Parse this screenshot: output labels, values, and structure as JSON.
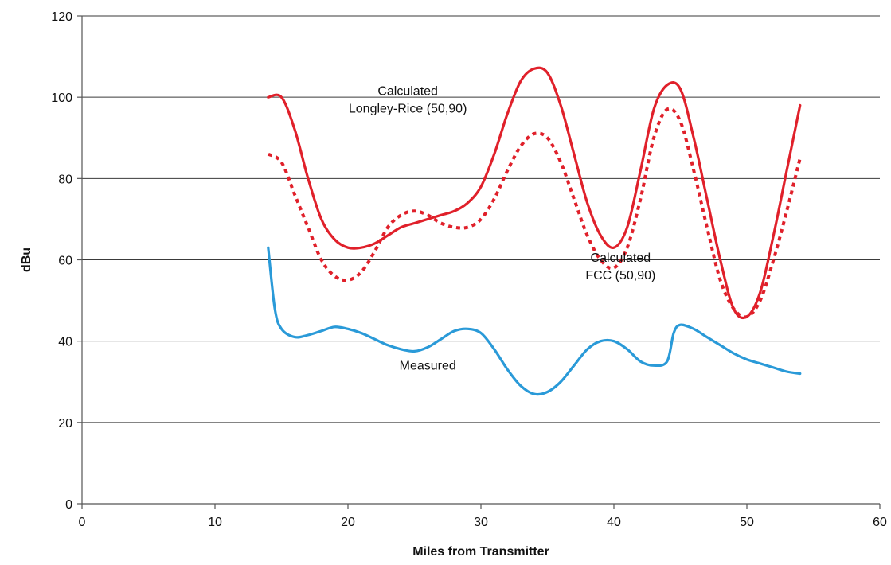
{
  "chart_data": {
    "type": "line",
    "title": "",
    "xlabel": "Miles from Transmitter",
    "ylabel": "dBu",
    "xlim": [
      0,
      60
    ],
    "ylim": [
      0,
      120
    ],
    "x_ticks": [
      0,
      10,
      20,
      30,
      40,
      50,
      60
    ],
    "y_ticks": [
      0,
      20,
      40,
      60,
      80,
      100,
      120
    ],
    "grid": "horizontal",
    "legend": "none",
    "series": [
      {
        "color": "#e0202a",
        "style": "solid",
        "x": [
          14,
          15,
          16,
          17,
          18,
          19,
          20,
          21,
          22,
          23,
          24,
          25,
          26,
          27,
          28,
          29,
          30,
          31,
          32,
          33,
          34,
          35,
          36,
          37,
          38,
          39,
          40,
          41,
          42,
          43,
          44,
          45,
          46,
          47,
          48,
          49,
          50,
          51,
          52,
          53,
          54
        ],
        "y": [
          100,
          100,
          92,
          80,
          70,
          65,
          63,
          63,
          64,
          66,
          68,
          69,
          70,
          71,
          72,
          74,
          78,
          86,
          96,
          104,
          107,
          106,
          98,
          86,
          74,
          66,
          63,
          68,
          82,
          97,
          103,
          102,
          90,
          75,
          60,
          48,
          46,
          52,
          66,
          82,
          98
        ]
      },
      {
        "color": "#e0202a",
        "style": "dotted",
        "x": [
          14,
          15,
          16,
          17,
          18,
          19,
          20,
          21,
          22,
          23,
          24,
          25,
          26,
          27,
          28,
          29,
          30,
          31,
          32,
          33,
          34,
          35,
          36,
          37,
          38,
          39,
          40,
          41,
          42,
          43,
          44,
          45,
          46,
          47,
          48,
          49,
          50,
          51,
          52,
          53,
          54
        ],
        "y": [
          86,
          84,
          76,
          68,
          60,
          56,
          55,
          57,
          62,
          68,
          71,
          72,
          71,
          69,
          68,
          68,
          70,
          75,
          82,
          88,
          91,
          90,
          84,
          75,
          66,
          60,
          58,
          63,
          75,
          90,
          97,
          94,
          82,
          68,
          55,
          48,
          46,
          50,
          60,
          72,
          85
        ]
      },
      {
        "color": "#2a9ad8",
        "style": "solid",
        "x": [
          14,
          14.5,
          15,
          16,
          17,
          18,
          19,
          20,
          21,
          22,
          23,
          24,
          25,
          26,
          27,
          28,
          29,
          30,
          31,
          32,
          33,
          34,
          35,
          36,
          37,
          38,
          39,
          40,
          41,
          42,
          43,
          44,
          44.5,
          45,
          46,
          47,
          48,
          49,
          50,
          51,
          52,
          53,
          54
        ],
        "y": [
          63,
          48,
          43,
          41,
          41.5,
          42.5,
          43.5,
          43,
          42,
          40.5,
          39,
          38,
          37.5,
          38.5,
          40.5,
          42.5,
          43,
          42,
          38,
          33,
          29,
          27,
          27.5,
          30,
          34,
          38,
          40,
          40,
          38,
          35,
          34,
          35,
          42,
          44,
          43,
          41,
          39,
          37,
          35.5,
          34.5,
          33.5,
          32.5,
          32
        ]
      }
    ],
    "annotations": [
      {
        "lines": [
          "Calculated",
          "Longley-Rice (50,90)"
        ],
        "x": 24.5,
        "y": 100.5
      },
      {
        "lines": [
          "Calculated",
          "FCC (50,90)"
        ],
        "x": 40.5,
        "y": 59.5
      },
      {
        "lines": [
          "Measured"
        ],
        "x": 26,
        "y": 33
      }
    ]
  }
}
